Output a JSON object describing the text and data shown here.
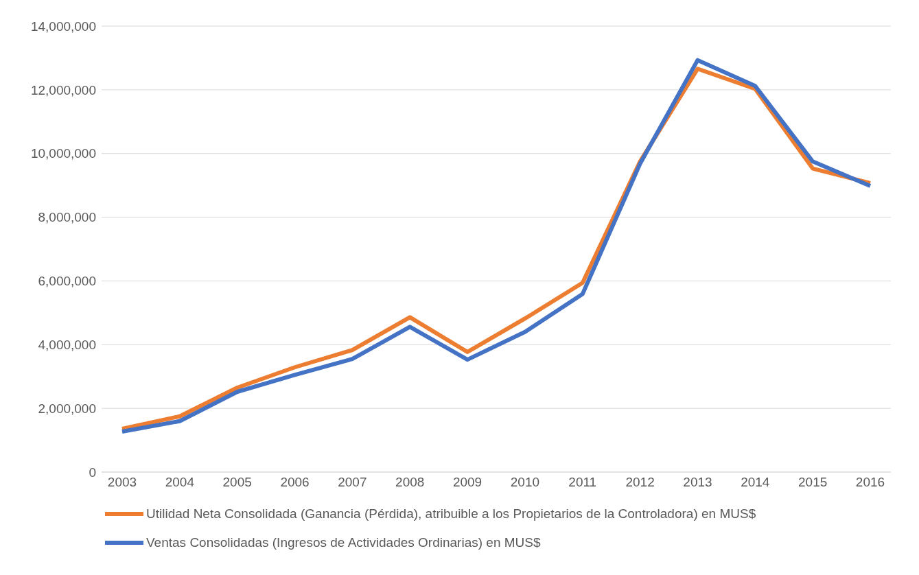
{
  "chart_data": {
    "type": "line",
    "categories": [
      "2003",
      "2004",
      "2005",
      "2006",
      "2007",
      "2008",
      "2009",
      "2010",
      "2011",
      "2012",
      "2013",
      "2014",
      "2015",
      "2016"
    ],
    "series": [
      {
        "name": "Utilidad Neta Consolidada (Ganancia (Pérdida), atribuible a los Propietarios de la Controladora) en MUS$",
        "color": "#ed7d31",
        "values": [
          1360000,
          1750000,
          2650000,
          3290000,
          3830000,
          4860000,
          3770000,
          4820000,
          5940000,
          9750000,
          12660000,
          12030000,
          9530000,
          9070000
        ]
      },
      {
        "name": "Ventas Consolidadas (Ingresos de Actividades Ordinarias) en MUS$",
        "color": "#4472c4",
        "values": [
          1270000,
          1600000,
          2520000,
          3050000,
          3550000,
          4560000,
          3530000,
          4400000,
          5590000,
          9680000,
          12930000,
          12120000,
          9750000,
          8980000
        ]
      }
    ],
    "ylim": [
      0,
      14000000
    ],
    "yticks": [
      0,
      {
        "value": 2000000,
        "label": "2,000,000"
      },
      {
        "value": 4000000,
        "label": "4,000,000"
      },
      {
        "value": 6000000,
        "label": "6,000,000"
      },
      {
        "value": 8000000,
        "label": "8,000,000"
      },
      {
        "value": 10000000,
        "label": "10,000,000"
      },
      {
        "value": 12000000,
        "label": "12,000,000"
      },
      {
        "value": 14000000,
        "label": "14,000,000"
      }
    ],
    "grid": "y",
    "legend": "bottom",
    "marker": "none",
    "line_style": "solid"
  }
}
